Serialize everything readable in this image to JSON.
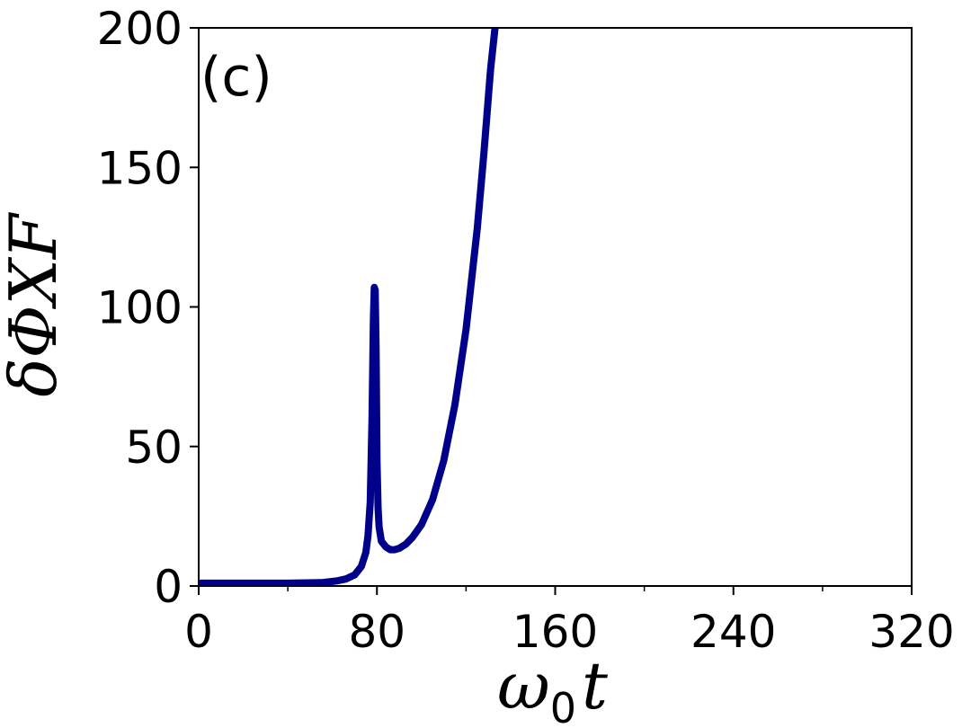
{
  "chart_data": {
    "type": "line",
    "panel_label": "(c)",
    "xlabel": {
      "base": "ω",
      "sub": "0",
      "var": "t"
    },
    "ylabel": "δΦXF",
    "xlim": [
      0,
      320
    ],
    "ylim": [
      0,
      200
    ],
    "xticks": [
      0,
      80,
      160,
      240,
      320
    ],
    "xtick_labels": [
      "0",
      "80",
      "160",
      "240",
      "320"
    ],
    "xminor": [
      40,
      120,
      200,
      280
    ],
    "yticks": [
      0,
      50,
      100,
      150,
      200
    ],
    "ytick_labels": [
      "0",
      "50",
      "100",
      "150",
      "200"
    ],
    "grid": false,
    "series": [
      {
        "color": "#00008b",
        "x": [
          0,
          20,
          40,
          55,
          62,
          66,
          70,
          73,
          75,
          76,
          77,
          77.8,
          78.4,
          78.8,
          79.2,
          79.6,
          80.0,
          80.5,
          81,
          82,
          84,
          86,
          88,
          90,
          93,
          96,
          100,
          105,
          110,
          115,
          120,
          125,
          128,
          131,
          133
        ],
        "y": [
          1,
          1,
          1,
          1.2,
          1.8,
          2.5,
          4,
          7,
          12,
          18,
          30,
          60,
          95,
          107,
          106,
          85,
          45,
          28,
          21,
          16,
          14,
          13,
          13,
          13.5,
          15,
          17.5,
          22,
          31,
          45,
          65,
          92,
          128,
          155,
          185,
          200
        ]
      }
    ]
  }
}
